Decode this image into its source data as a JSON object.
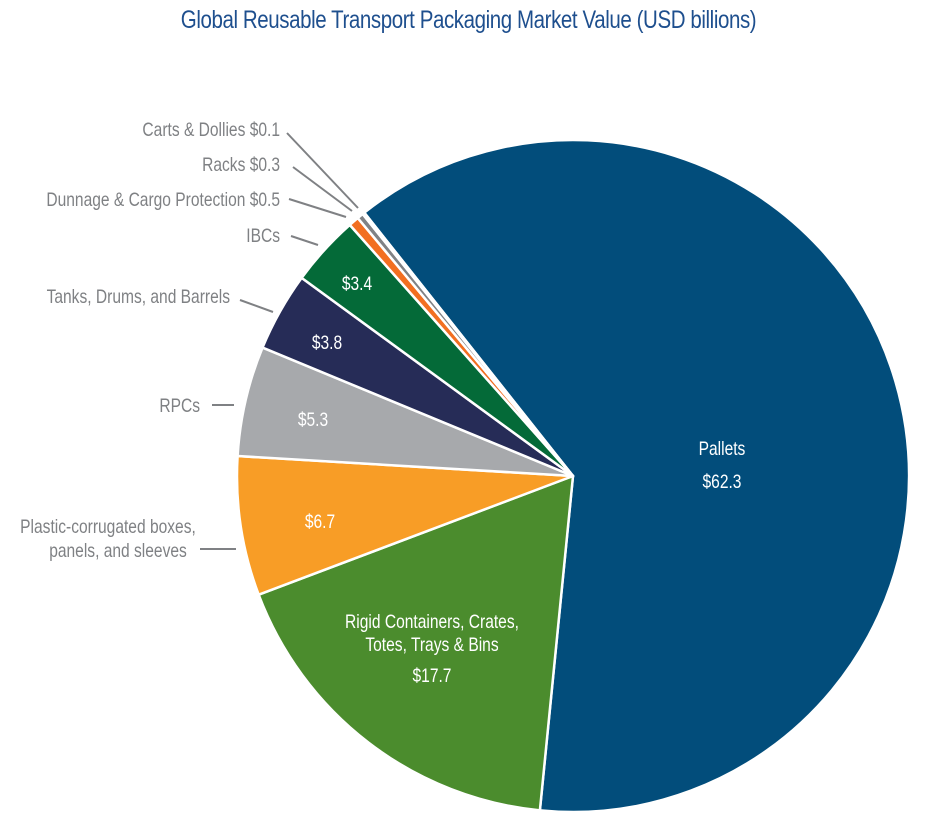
{
  "chart_data": {
    "type": "pie",
    "title": "Global Reusable Transport Packaging Market Value (USD billions)",
    "unit": "USD billions",
    "slices": [
      {
        "name": "Pallets",
        "value": 62.3,
        "label": "$62.3",
        "color": "#024d7b",
        "label_position": "inside"
      },
      {
        "name": "Rigid Containers, Crates, Totes, Trays & Bins",
        "label_lines": [
          "Rigid Containers, Crates,",
          "Totes, Trays & Bins"
        ],
        "value": 17.7,
        "label": "$17.7",
        "color": "#4b8c2d",
        "label_position": "inside"
      },
      {
        "name": "Plastic-corrugated boxes, panels, and sleeves",
        "label_lines": [
          "Plastic-corrugated boxes,",
          "panels, and sleeves"
        ],
        "value": 6.7,
        "label": "$6.7",
        "color": "#f89d26",
        "label_position": "inside-value-outside-name"
      },
      {
        "name": "RPCs",
        "value": 5.3,
        "label": "$5.3",
        "color": "#a7a9ac",
        "label_position": "inside-value-outside-name"
      },
      {
        "name": "Tanks, Drums, and Barrels",
        "value": 3.8,
        "label": "$3.8",
        "color": "#262c57",
        "label_position": "inside-value-outside-name"
      },
      {
        "name": "IBCs",
        "value": 3.4,
        "label": "$3.4",
        "color": "#046a38",
        "label_position": "inside-value-outside-name"
      },
      {
        "name": "Dunnage & Cargo Protection",
        "value": 0.5,
        "label": "Dunnage & Cargo Protection $0.5",
        "color": "#f26f21",
        "label_position": "outside"
      },
      {
        "name": "Racks",
        "value": 0.3,
        "label": "Racks $0.3",
        "color": "#808285",
        "label_position": "outside"
      },
      {
        "name": "Carts & Dollies",
        "value": 0.1,
        "label": "Carts & Dollies $0.1",
        "color": "#b1b3b6",
        "label_position": "outside"
      }
    ],
    "legend": "none"
  }
}
